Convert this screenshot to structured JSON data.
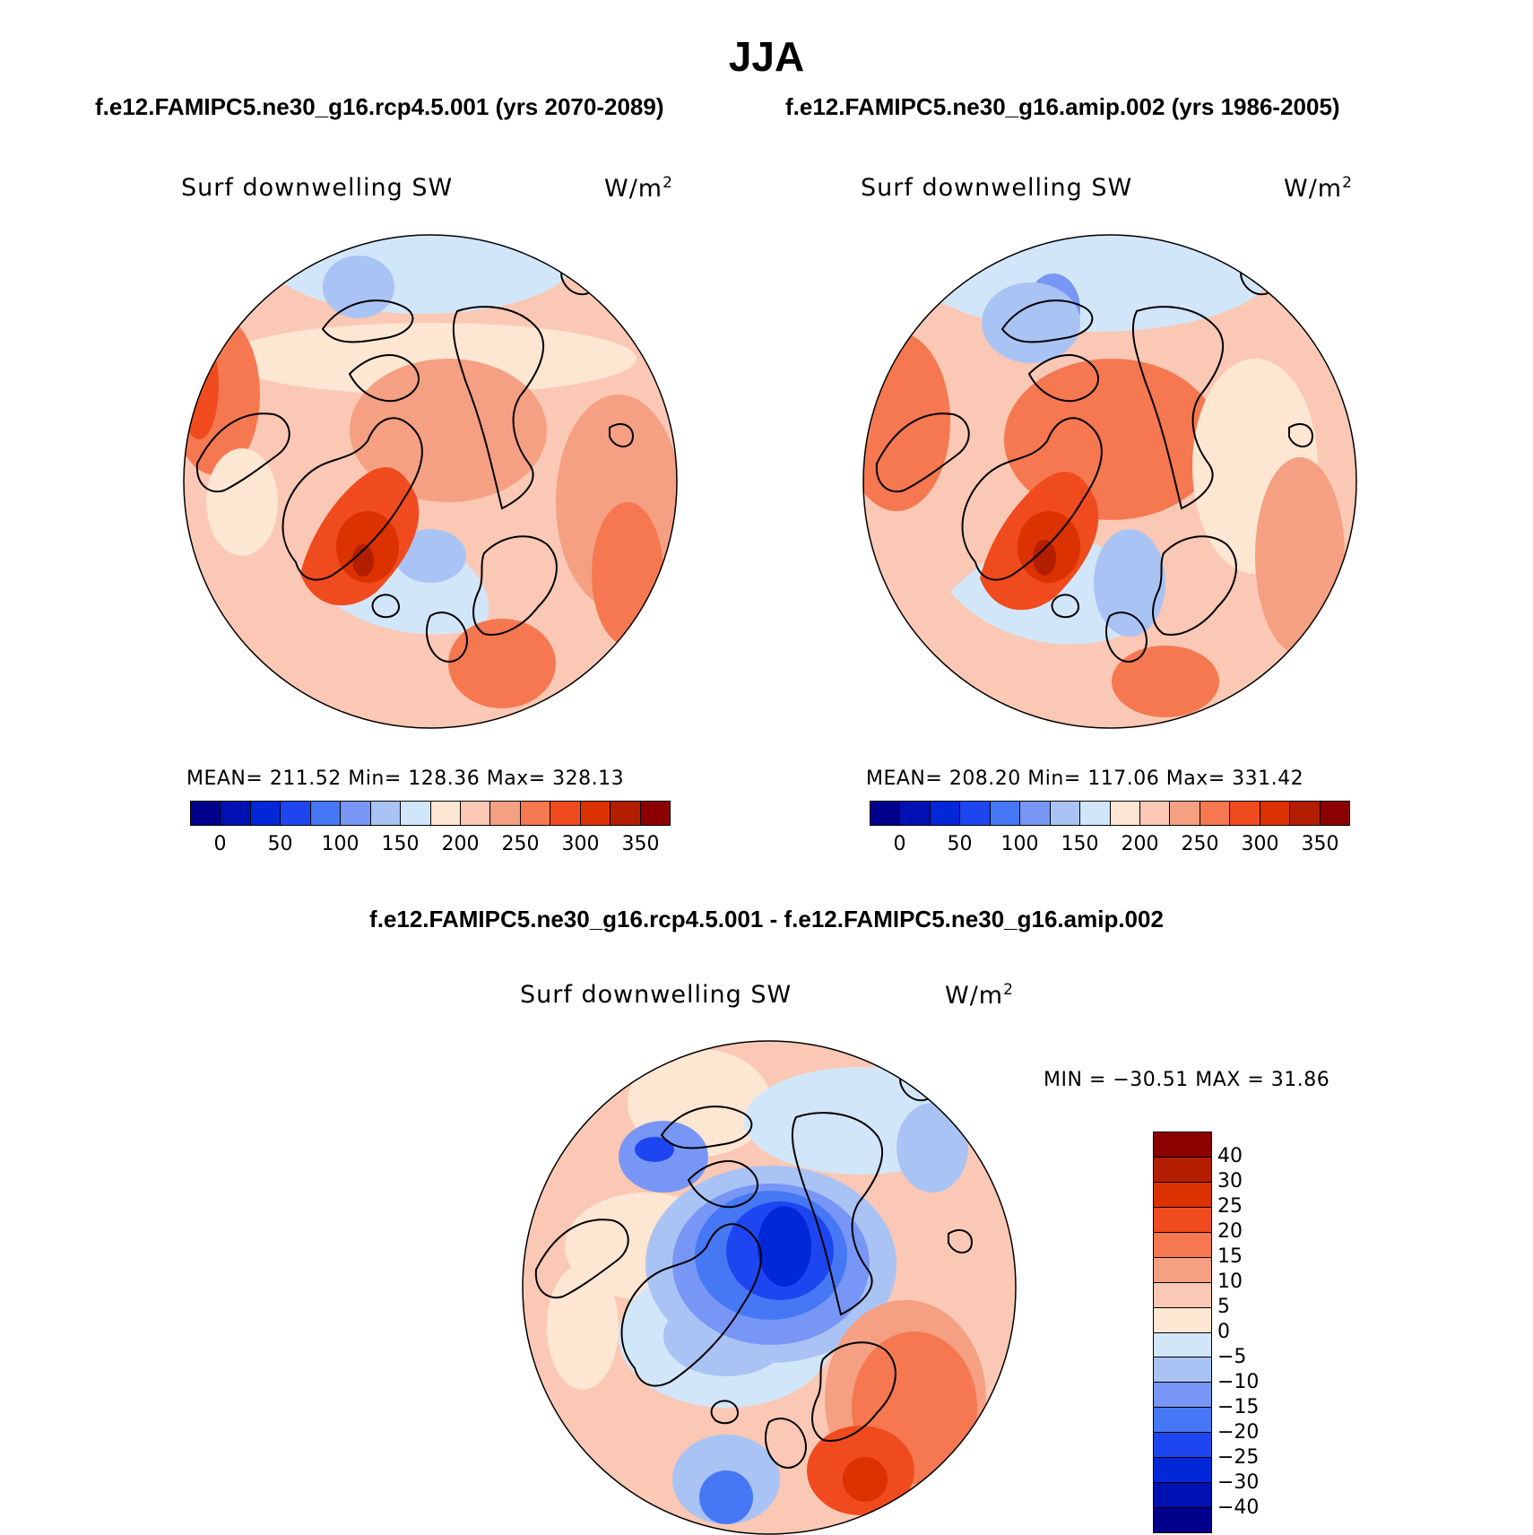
{
  "season": "JJA",
  "subtitles": {
    "left": "f.e12.FAMIPC5.ne30_g16.rcp4.5.001 (yrs 2070-2089)",
    "right": "f.e12.FAMIPC5.ne30_g16.amip.002 (yrs 1986-2005)",
    "diff": "f.e12.FAMIPC5.ne30_g16.rcp4.5.001 - f.e12.FAMIPC5.ne30_g16.amip.002"
  },
  "panels": {
    "left": {
      "variable": "Surf downwelling SW",
      "units": "W/m",
      "units_sup": "2",
      "stats": "MEAN= 211.52   Min= 128.36   Max= 328.13"
    },
    "right": {
      "variable": "Surf downwelling SW",
      "units": "W/m",
      "units_sup": "2",
      "stats": "MEAN= 208.20   Min= 117.06   Max= 331.42"
    },
    "diff": {
      "variable": "Surf downwelling SW",
      "units": "W/m",
      "units_sup": "2",
      "stats": "MIN = −30.51  MAX =   31.86"
    }
  },
  "colorbar_fields": {
    "colors": [
      "#00008c",
      "#0011b4",
      "#0028d8",
      "#1e46f0",
      "#4678f5",
      "#7896f5",
      "#aac3f5",
      "#d2e6fa",
      "#fde6d2",
      "#fac8b4",
      "#f5a082",
      "#f57850",
      "#f04b1e",
      "#dc3200",
      "#b41e00",
      "#8c0000"
    ],
    "ticks": [
      "0",
      "50",
      "100",
      "150",
      "200",
      "250",
      "300",
      "350"
    ]
  },
  "colorbar_diff": {
    "colors_top_to_bottom": [
      "#8c0000",
      "#b41e00",
      "#dc3200",
      "#f04b1e",
      "#f57850",
      "#f5a082",
      "#fac8b4",
      "#fde6d2",
      "#d2e6fa",
      "#aac3f5",
      "#7896f5",
      "#4678f5",
      "#1e46f0",
      "#0028d8",
      "#0011b4",
      "#00008c"
    ],
    "ticks": [
      "40",
      "30",
      "25",
      "20",
      "15",
      "10",
      "5",
      "0",
      "−5",
      "−10",
      "−15",
      "−20",
      "−25",
      "−30",
      "−40"
    ]
  }
}
